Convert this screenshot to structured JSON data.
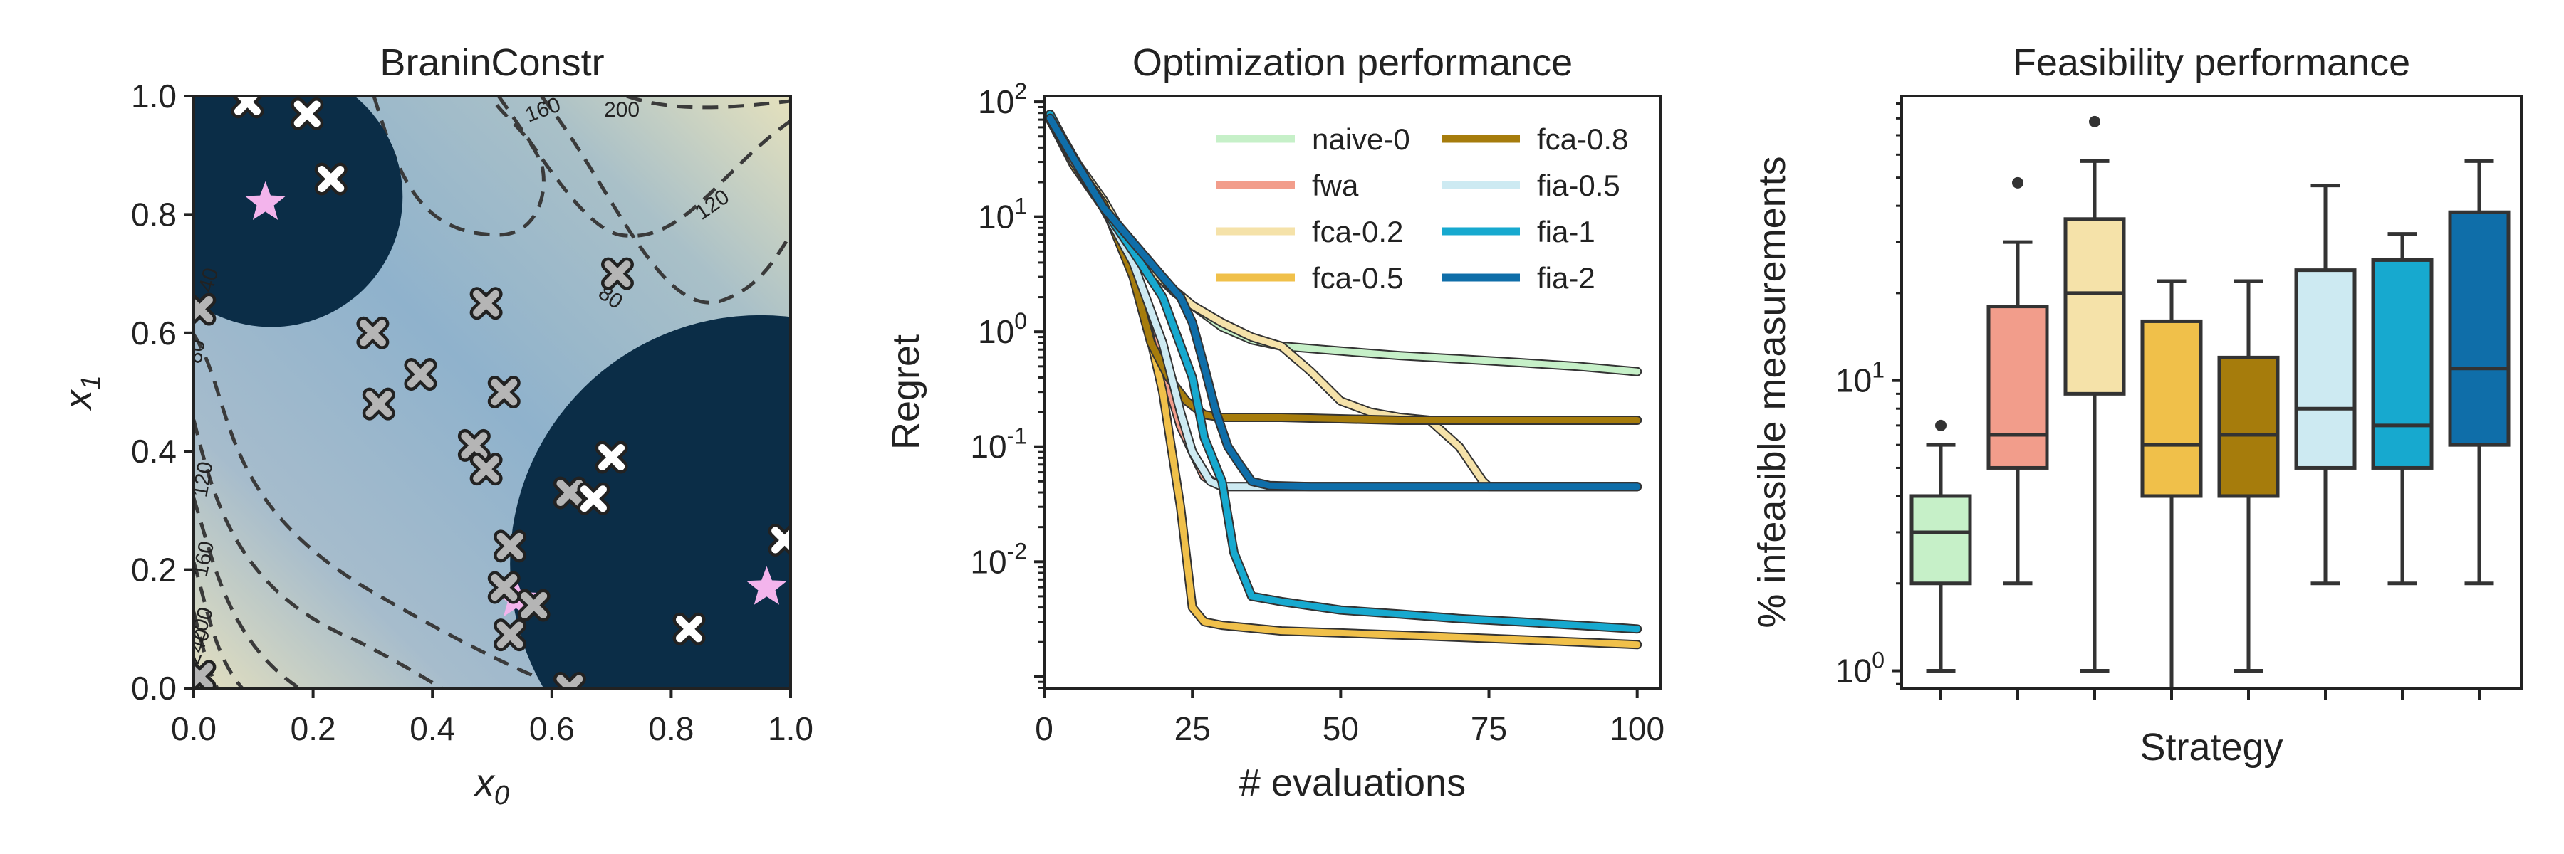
{
  "chart_data": [
    {
      "type": "heatmap",
      "title": "BraninConstr",
      "xlabel_base": "x",
      "xlabel_sub": "0",
      "ylabel_base": "x",
      "ylabel_sub": "1",
      "xlim": [
        0.0,
        1.0
      ],
      "ylim": [
        0.0,
        1.0
      ],
      "xticks": [
        "0.0",
        "0.2",
        "0.4",
        "0.6",
        "0.8",
        "1.0"
      ],
      "yticks": [
        "0.0",
        "0.2",
        "0.4",
        "0.6",
        "0.8",
        "1.0"
      ],
      "contour_labels": [
        "40",
        "80",
        "120",
        "160",
        "200",
        "240"
      ],
      "infeasible_regions": [
        {
          "cx": 0.13,
          "cy": 0.83,
          "r": 0.22
        },
        {
          "cx": 0.95,
          "cy": 0.21,
          "r": 0.42
        }
      ],
      "optima": [
        {
          "x": 0.12,
          "y": 0.82
        },
        {
          "x": 0.54,
          "y": 0.15
        },
        {
          "x": 0.96,
          "y": 0.17
        }
      ],
      "feasible_samples": [
        {
          "x": 0.3,
          "y": 0.6
        },
        {
          "x": 0.31,
          "y": 0.48
        },
        {
          "x": 0.38,
          "y": 0.53
        },
        {
          "x": 0.47,
          "y": 0.41
        },
        {
          "x": 0.49,
          "y": 0.37
        },
        {
          "x": 0.49,
          "y": 0.65
        },
        {
          "x": 0.52,
          "y": 0.5
        },
        {
          "x": 0.53,
          "y": 0.24
        },
        {
          "x": 0.52,
          "y": 0.17
        },
        {
          "x": 0.53,
          "y": 0.09
        },
        {
          "x": 0.57,
          "y": 0.14
        },
        {
          "x": 0.63,
          "y": 0.33
        },
        {
          "x": 0.71,
          "y": 0.7
        },
        {
          "x": 0.63,
          "y": 0.0
        },
        {
          "x": 0.01,
          "y": 0.64
        },
        {
          "x": 0.01,
          "y": 0.02
        }
      ],
      "infeasible_samples": [
        {
          "x": 0.09,
          "y": 0.99
        },
        {
          "x": 0.19,
          "y": 0.97
        },
        {
          "x": 0.23,
          "y": 0.86
        },
        {
          "x": 0.7,
          "y": 0.39
        },
        {
          "x": 0.67,
          "y": 0.32
        },
        {
          "x": 0.83,
          "y": 0.1
        },
        {
          "x": 0.99,
          "y": 0.25
        }
      ]
    },
    {
      "type": "line",
      "title": "Optimization performance",
      "xlabel": "# evaluations",
      "ylabel": "Regret",
      "xlim": [
        0,
        104
      ],
      "ylim_log10": [
        -3.1,
        2.05
      ],
      "yscale": "log",
      "xticks": [
        "0",
        "25",
        "50",
        "75",
        "100"
      ],
      "ytick_base": "10",
      "ytick_exponents": [
        "2",
        "1",
        "0",
        "-1",
        "-2"
      ],
      "legend_location": "top-right",
      "series": [
        {
          "name": "naive-0",
          "color": "#c6f0c8",
          "points": [
            [
              1,
              75
            ],
            [
              5,
              33
            ],
            [
              10,
              12
            ],
            [
              14,
              6
            ],
            [
              18,
              3.5
            ],
            [
              22,
              2.2
            ],
            [
              25,
              1.7
            ],
            [
              30,
              1.1
            ],
            [
              35,
              0.85
            ],
            [
              40,
              0.75
            ],
            [
              50,
              0.68
            ],
            [
              60,
              0.62
            ],
            [
              70,
              0.58
            ],
            [
              80,
              0.54
            ],
            [
              90,
              0.5
            ],
            [
              100,
              0.45
            ]
          ]
        },
        {
          "name": "fwa",
          "color": "#f29d8b",
          "points": [
            [
              1,
              75
            ],
            [
              5,
              30
            ],
            [
              10,
              14
            ],
            [
              15,
              4
            ],
            [
              20,
              0.5
            ],
            [
              23,
              0.15
            ],
            [
              25,
              0.09
            ],
            [
              27,
              0.055
            ],
            [
              30,
              0.045
            ],
            [
              40,
              0.045
            ],
            [
              60,
              0.045
            ],
            [
              80,
              0.045
            ],
            [
              100,
              0.045
            ]
          ]
        },
        {
          "name": "fca-0.2",
          "color": "#f5e2a9",
          "points": [
            [
              1,
              75
            ],
            [
              5,
              32
            ],
            [
              10,
              14
            ],
            [
              15,
              5
            ],
            [
              20,
              2.8
            ],
            [
              25,
              1.7
            ],
            [
              30,
              1.2
            ],
            [
              35,
              0.9
            ],
            [
              40,
              0.75
            ],
            [
              45,
              0.45
            ],
            [
              50,
              0.25
            ],
            [
              55,
              0.2
            ],
            [
              60,
              0.18
            ],
            [
              65,
              0.17
            ],
            [
              70,
              0.1
            ],
            [
              74,
              0.05
            ],
            [
              75,
              0.045
            ],
            [
              80,
              0.045
            ],
            [
              90,
              0.045
            ],
            [
              100,
              0.045
            ]
          ]
        },
        {
          "name": "fca-0.5",
          "color": "#f0c04a",
          "points": [
            [
              1,
              70
            ],
            [
              5,
              28
            ],
            [
              10,
              12
            ],
            [
              15,
              4
            ],
            [
              20,
              0.3
            ],
            [
              23,
              0.03
            ],
            [
              25,
              0.004
            ],
            [
              27,
              0.003
            ],
            [
              30,
              0.0028
            ],
            [
              40,
              0.0025
            ],
            [
              50,
              0.0024
            ],
            [
              60,
              0.0023
            ],
            [
              70,
              0.0022
            ],
            [
              80,
              0.0021
            ],
            [
              90,
              0.002
            ],
            [
              100,
              0.0019
            ]
          ]
        },
        {
          "name": "fca-0.8",
          "color": "#a67c0c",
          "points": [
            [
              1,
              72
            ],
            [
              5,
              30
            ],
            [
              10,
              13
            ],
            [
              15,
              3
            ],
            [
              18,
              0.8
            ],
            [
              21,
              0.4
            ],
            [
              24,
              0.25
            ],
            [
              27,
              0.19
            ],
            [
              30,
              0.18
            ],
            [
              40,
              0.18
            ],
            [
              60,
              0.17
            ],
            [
              80,
              0.17
            ],
            [
              100,
              0.17
            ]
          ]
        },
        {
          "name": "fia-0.5",
          "color": "#cdeaf2",
          "points": [
            [
              1,
              74
            ],
            [
              5,
              30
            ],
            [
              10,
              12
            ],
            [
              15,
              4
            ],
            [
              20,
              0.8
            ],
            [
              23,
              0.2
            ],
            [
              25,
              0.09
            ],
            [
              28,
              0.05
            ],
            [
              30,
              0.045
            ],
            [
              40,
              0.045
            ],
            [
              60,
              0.045
            ],
            [
              80,
              0.045
            ],
            [
              100,
              0.045
            ]
          ]
        },
        {
          "name": "fia-1",
          "color": "#17a9cf",
          "points": [
            [
              1,
              78
            ],
            [
              5,
              32
            ],
            [
              10,
              12
            ],
            [
              15,
              5
            ],
            [
              20,
              2
            ],
            [
              25,
              0.4
            ],
            [
              27,
              0.12
            ],
            [
              30,
              0.05
            ],
            [
              32,
              0.012
            ],
            [
              35,
              0.005
            ],
            [
              40,
              0.0045
            ],
            [
              50,
              0.0038
            ],
            [
              60,
              0.0035
            ],
            [
              70,
              0.0032
            ],
            [
              80,
              0.003
            ],
            [
              90,
              0.0028
            ],
            [
              100,
              0.0026
            ]
          ]
        },
        {
          "name": "fia-2",
          "color": "#0f6ea9",
          "points": [
            [
              1,
              72
            ],
            [
              5,
              32
            ],
            [
              10,
              12
            ],
            [
              15,
              6
            ],
            [
              20,
              3
            ],
            [
              23,
              2
            ],
            [
              25,
              1.2
            ],
            [
              27,
              0.5
            ],
            [
              29,
              0.2
            ],
            [
              31,
              0.1
            ],
            [
              33,
              0.07
            ],
            [
              35,
              0.05
            ],
            [
              38,
              0.046
            ],
            [
              45,
              0.045
            ],
            [
              60,
              0.045
            ],
            [
              80,
              0.045
            ],
            [
              100,
              0.045
            ]
          ]
        }
      ]
    },
    {
      "type": "box",
      "title": "Feasibility performance",
      "xlabel": "Strategy",
      "ylabel": "% infeasible measurements",
      "yscale": "log",
      "ylim_log10": [
        -0.06,
        1.98
      ],
      "ytick_base": "10",
      "ytick_exponents": [
        "1",
        "0"
      ],
      "boxes": [
        {
          "color": "#c6f0c8",
          "whisker_low": 1,
          "q1": 2,
          "median": 3,
          "q3": 4,
          "whisker_high": 6,
          "outliers": [
            7
          ]
        },
        {
          "color": "#f29d8b",
          "whisker_low": 2,
          "q1": 5,
          "median": 6.5,
          "q3": 18,
          "whisker_high": 30,
          "outliers": [
            48
          ]
        },
        {
          "color": "#f5e2a9",
          "whisker_low": 1,
          "q1": 9,
          "median": 20,
          "q3": 36,
          "whisker_high": 57,
          "outliers": [
            78
          ]
        },
        {
          "color": "#f0c04a",
          "whisker_low": 0.5,
          "q1": 4,
          "median": 6,
          "q3": 16,
          "whisker_high": 22,
          "outliers": []
        },
        {
          "color": "#a67c0c",
          "whisker_low": 1,
          "q1": 4,
          "median": 6.5,
          "q3": 12,
          "whisker_high": 22,
          "outliers": []
        },
        {
          "color": "#cdeaf2",
          "whisker_low": 2,
          "q1": 5,
          "median": 8,
          "q3": 24,
          "whisker_high": 47,
          "outliers": []
        },
        {
          "color": "#17a9cf",
          "whisker_low": 2,
          "q1": 5,
          "median": 7,
          "q3": 26,
          "whisker_high": 32,
          "outliers": []
        },
        {
          "color": "#0f6ea9",
          "whisker_low": 2,
          "q1": 6,
          "median": 11,
          "q3": 38,
          "whisker_high": 57,
          "outliers": []
        }
      ]
    }
  ]
}
